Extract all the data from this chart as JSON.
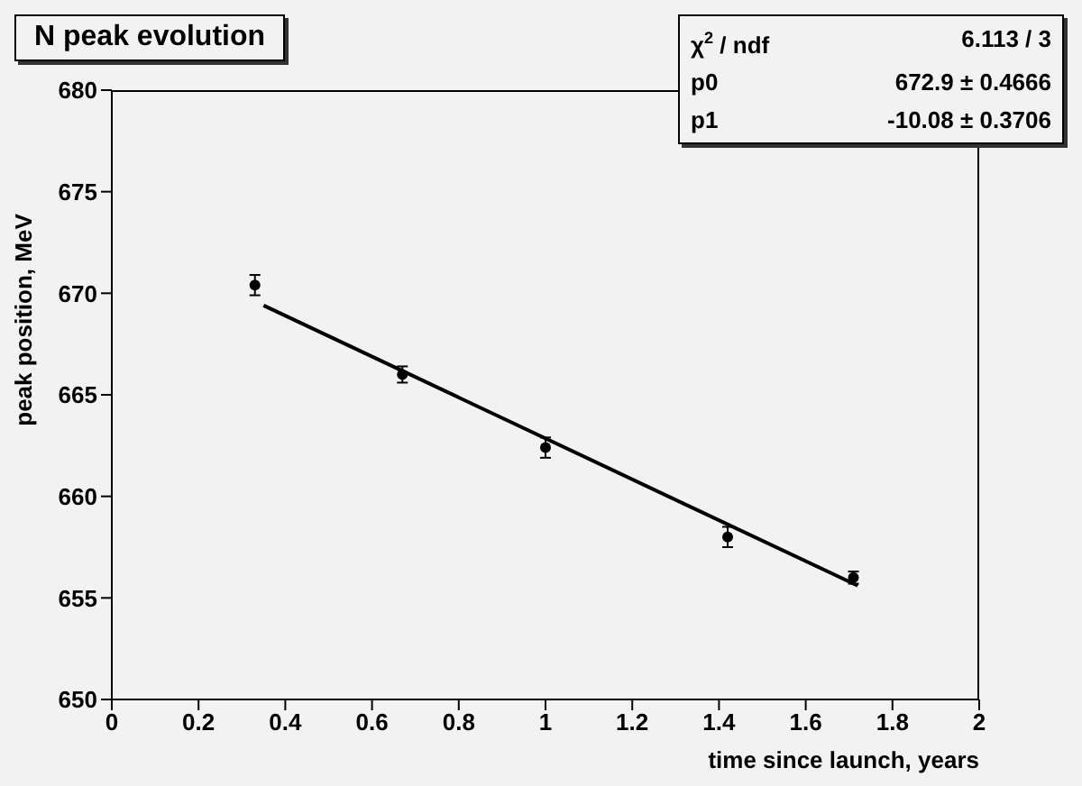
{
  "chart_data": {
    "type": "scatter",
    "title": "N peak evolution",
    "xlabel": "time since launch, years",
    "ylabel": "peak position, MeV",
    "annotations": [
      "χ$^{2}$ / ndf",
      "6.113 / 3",
      "p0",
      "672.9 ± 0.4666",
      "p1",
      "-10.08 ± 0.3706"
    ],
    "series": [
      {
        "color": "#000000",
        "x": [
          0.33,
          0.67,
          1.0,
          1.42,
          1.71
        ],
        "values": [
          670.4,
          666.0,
          662.4,
          658.0,
          656.0
        ],
        "errors": [
          0.5,
          0.4,
          0.5,
          0.5,
          0.3
        ]
      },
      {
        "type": "line",
        "marker": "none",
        "color": "#000000",
        "x": [
          0.35,
          1.72
        ],
        "values": [
          669.4,
          655.6
        ]
      }
    ],
    "xlim": [
      0,
      2
    ],
    "xticks": [
      0,
      0.2,
      0.4,
      0.6,
      0.8,
      1,
      1.2,
      1.4,
      1.6,
      1.8,
      2
    ],
    "ylim": [
      650,
      680
    ],
    "yticks": [
      650,
      655,
      660,
      665,
      670,
      675,
      680
    ],
    "marker": "circle",
    "line_style": "solid",
    "grid": false,
    "legend": false
  }
}
